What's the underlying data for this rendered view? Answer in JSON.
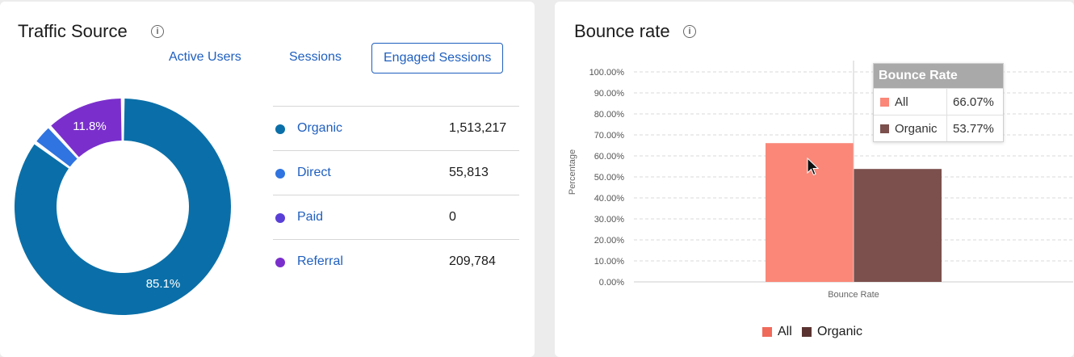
{
  "traffic_source": {
    "title": "Traffic Source",
    "tabs": [
      {
        "label": "Active Users",
        "active": false
      },
      {
        "label": "Sessions",
        "active": false
      },
      {
        "label": "Engaged Sessions",
        "active": true
      }
    ],
    "donut_labels": {
      "organic": "85.1%",
      "referral": "11.8%"
    },
    "rows": [
      {
        "name": "Organic",
        "value": "1,513,217",
        "color": "#0a6fa8"
      },
      {
        "name": "Direct",
        "value": "55,813",
        "color": "#2f74e0"
      },
      {
        "name": "Paid",
        "value": "0",
        "color": "#5a3fd6"
      },
      {
        "name": "Referral",
        "value": "209,784",
        "color": "#7a2fcc"
      }
    ]
  },
  "bounce_rate": {
    "title": "Bounce rate",
    "chart_data": {
      "type": "bar",
      "categories": [
        "Bounce Rate"
      ],
      "series": [
        {
          "name": "All",
          "values": [
            66.07
          ],
          "color": "#fa8778"
        },
        {
          "name": "Organic",
          "values": [
            53.77
          ],
          "color": "#7b504d"
        }
      ],
      "ylabel": "Percentage",
      "ylim": [
        0,
        100
      ],
      "y_ticks": [
        "0.00%",
        "10.00%",
        "20.00%",
        "30.00%",
        "40.00%",
        "50.00%",
        "60.00%",
        "70.00%",
        "80.00%",
        "90.00%",
        "100.00%"
      ],
      "grid": true,
      "legend": "bottom"
    },
    "tooltip": {
      "title": "Bounce Rate",
      "rows": [
        {
          "name": "All",
          "value": "66.07%",
          "color": "#fa8778"
        },
        {
          "name": "Organic",
          "value": "53.77%",
          "color": "#7b504d"
        }
      ]
    },
    "legend": [
      {
        "name": "All",
        "color": "#f06a5a"
      },
      {
        "name": "Organic",
        "color": "#5a3330"
      }
    ]
  }
}
